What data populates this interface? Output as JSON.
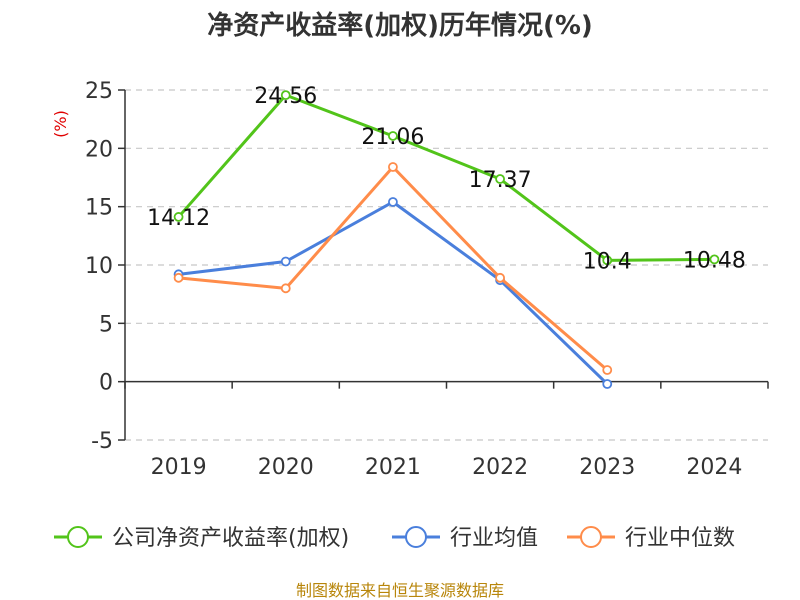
{
  "chart_data": {
    "type": "line",
    "title": "净资产收益率(加权)历年情况(%)",
    "ylabel": "(%)",
    "xlabel": "",
    "categories": [
      "2019",
      "2020",
      "2021",
      "2022",
      "2023",
      "2024"
    ],
    "ylim": [
      -5,
      25
    ],
    "yticks": [
      -5,
      0,
      5,
      10,
      15,
      20,
      25
    ],
    "grid": true,
    "legend_position": "bottom",
    "series": [
      {
        "name": "公司净资产收益率(加权)",
        "color": "#52c41a",
        "values": [
          14.12,
          24.56,
          21.06,
          17.37,
          10.4,
          10.48
        ],
        "labels": [
          "14.12",
          "24.56",
          "21.06",
          "17.37",
          "10.4",
          "10.48"
        ]
      },
      {
        "name": "行业均值",
        "color": "#4a7fdc",
        "values": [
          9.2,
          10.3,
          15.4,
          8.7,
          -0.2,
          null
        ]
      },
      {
        "name": "行业中位数",
        "color": "#ff8c4a",
        "values": [
          8.9,
          8.0,
          18.4,
          8.9,
          1.0,
          null
        ]
      }
    ],
    "source": "制图数据来自恒生聚源数据库"
  }
}
